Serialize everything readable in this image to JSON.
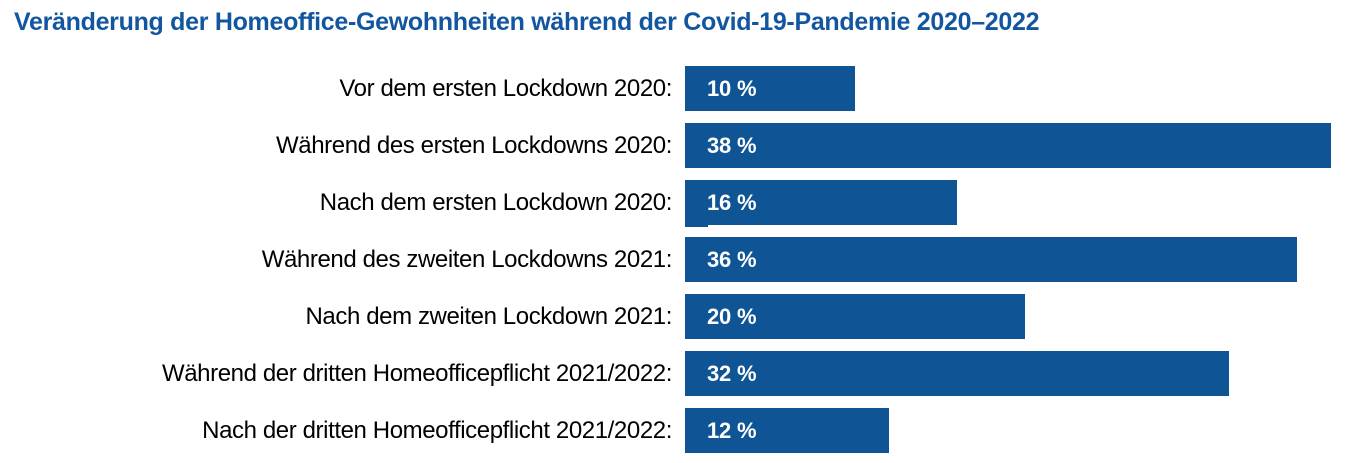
{
  "chart_data": {
    "type": "bar",
    "orientation": "horizontal",
    "title": "Veränderung der Homeoffice-Gewohnheiten während der Covid-19-Pandemie 2020–2022",
    "categories": [
      "Vor dem ersten Lockdown 2020:",
      "Während des ersten Lockdowns 2020:",
      "Nach dem ersten Lockdown 2020:",
      "Während des zweiten Lockdowns 2021:",
      "Nach dem zweiten Lockdown 2021:",
      "Während der dritten Homeofficepflicht 2021/2022:",
      "Nach der dritten Homeofficepflicht 2021/2022:"
    ],
    "values": [
      10,
      38,
      16,
      36,
      20,
      32,
      12
    ],
    "value_labels": [
      "10 %",
      "38 %",
      "16 %",
      "36 %",
      "20 %",
      "32 %",
      "12 %"
    ],
    "xlabel": "",
    "ylabel": "",
    "xlim": [
      0,
      38
    ],
    "grid": false,
    "legend": "none",
    "data_label_position": "inside-start",
    "unit": "%"
  },
  "colors": {
    "title_text": "#1356A0",
    "bar_fill": "#0F5494",
    "bar_value_text": "#FFFFFF",
    "category_text": "#000000",
    "background": "#FFFFFF"
  }
}
